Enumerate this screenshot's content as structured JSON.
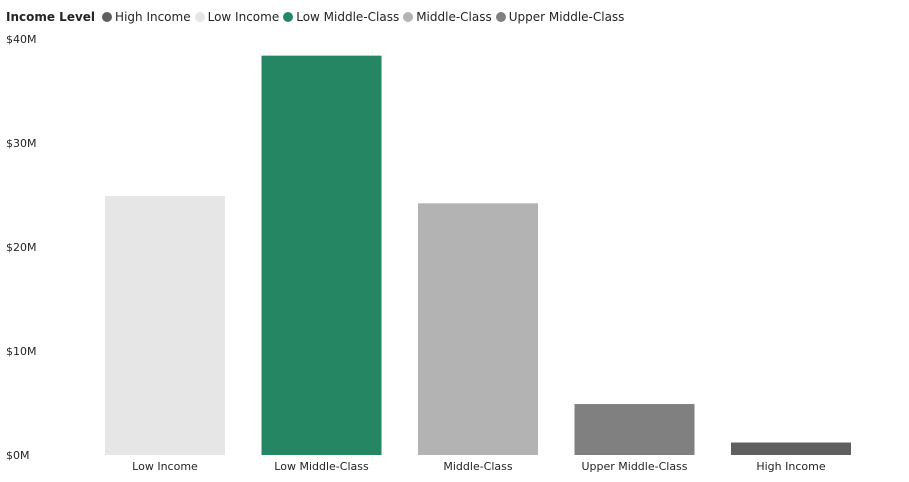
{
  "chart_data": {
    "type": "bar",
    "legend": {
      "title": "Income Level",
      "items": [
        {
          "label": "High Income",
          "color": "#5f5f5f"
        },
        {
          "label": "Low Income",
          "color": "#e6e6e6"
        },
        {
          "label": "Low Middle-Class",
          "color": "#258663"
        },
        {
          "label": "Middle-Class",
          "color": "#b3b3b3"
        },
        {
          "label": "Upper Middle-Class",
          "color": "#808080"
        }
      ],
      "placement": "top-left"
    },
    "categories": [
      "Low Income",
      "Low Middle-Class",
      "Middle-Class",
      "Upper Middle-Class",
      "High Income"
    ],
    "values": [
      24.9,
      38.4,
      24.2,
      4.9,
      1.2
    ],
    "colors": [
      "#e6e6e6",
      "#258663",
      "#b3b3b3",
      "#808080",
      "#5f5f5f"
    ],
    "y_ticks": [
      "$0M",
      "$10M",
      "$20M",
      "$30M",
      "$40M"
    ],
    "y_tick_values": [
      0,
      10,
      20,
      30,
      40
    ],
    "ylim": [
      0,
      40
    ],
    "unit": "$M",
    "grid": false,
    "title": "",
    "xlabel": "",
    "ylabel": ""
  }
}
